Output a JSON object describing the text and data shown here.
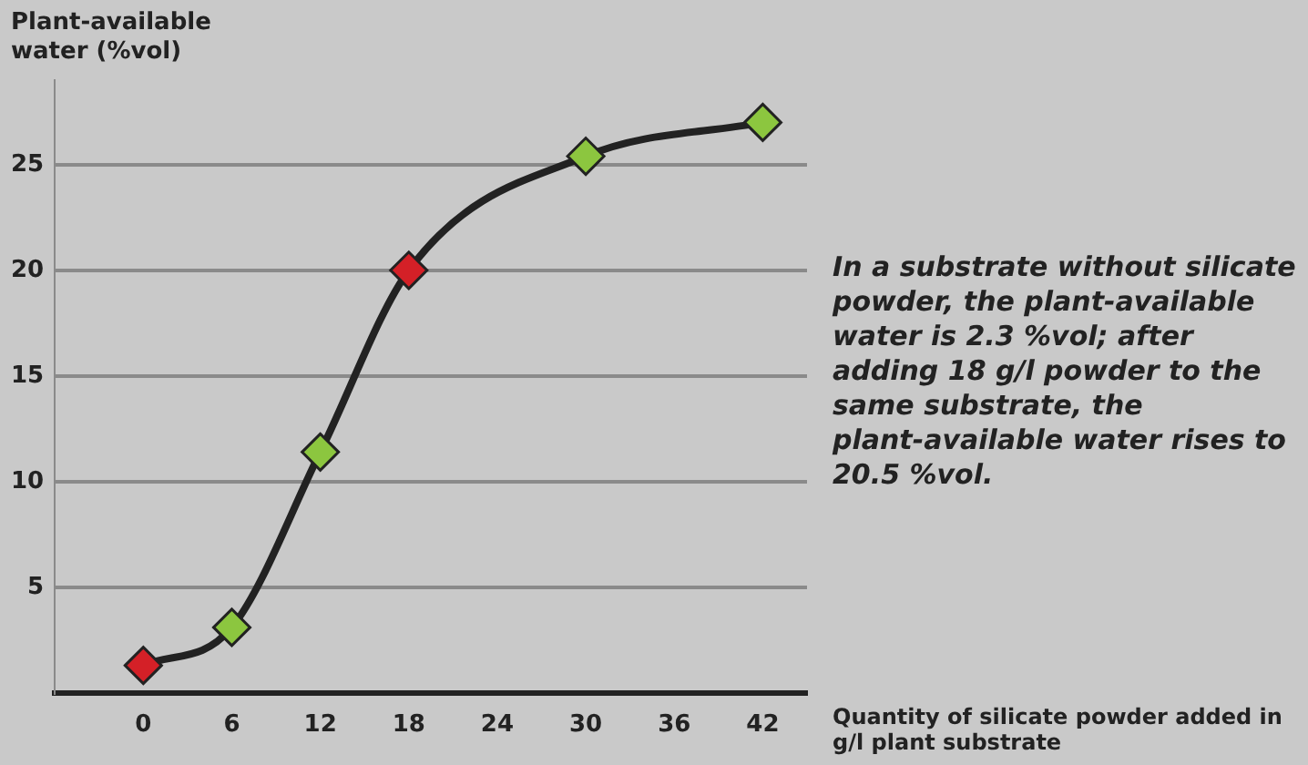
{
  "chart_data": {
    "type": "line",
    "ylabel": "Plant-available water (%vol)",
    "xlabel": "Quantity of silicate powder added in g/l plant substrate",
    "x": [
      0,
      6,
      12,
      18,
      30,
      42
    ],
    "series": [
      {
        "color": "#222222",
        "marker": "none",
        "values": [
          1.3,
          3.1,
          11.4,
          20,
          25.4,
          27
        ]
      },
      {
        "type": "scatter",
        "color": "#8cc63f",
        "colors": [
          "#d42027",
          "#8cc63f",
          "#8cc63f",
          "#d42027",
          "#8cc63f",
          "#8cc63f"
        ],
        "values": [
          1.3,
          3.1,
          11.4,
          20,
          25.4,
          27
        ]
      }
    ],
    "xlim": [
      -6,
      45
    ],
    "xticks": [
      0,
      6,
      12,
      18,
      24,
      30,
      36,
      42
    ],
    "ylim": [
      0,
      29
    ],
    "yticks": [
      5,
      10,
      15,
      20,
      25
    ],
    "grid": "y",
    "marker": "diamond",
    "legend": false,
    "annotations": [
      "In a substrate without silicate powder, the plant-available water is 2.3 %vol; after adding 18 g/l powder to the same substrate, the plant-available water rises to 20.5 %vol."
    ]
  }
}
